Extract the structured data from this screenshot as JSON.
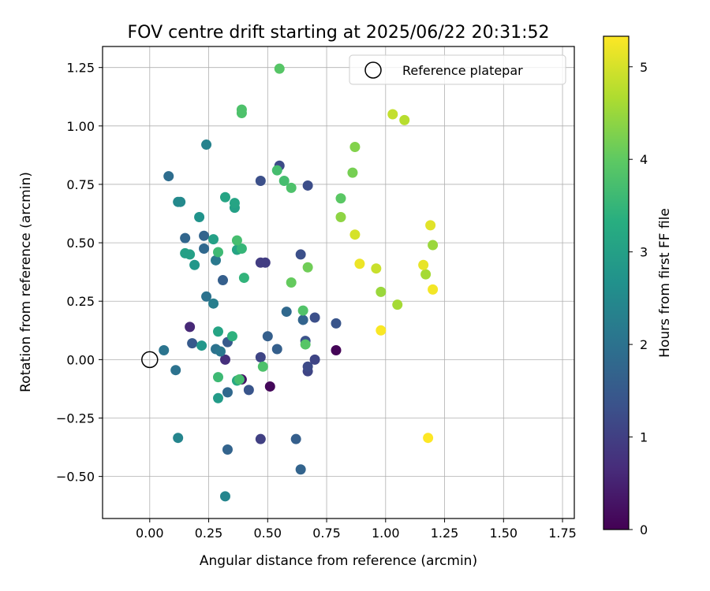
{
  "chart_data": {
    "type": "scatter",
    "title": "FOV centre drift starting at 2025/06/22 20:31:52",
    "xlabel": "Angular distance from reference (arcmin)",
    "ylabel": "Rotation from reference (arcmin)",
    "xlim": [
      -0.2,
      1.8
    ],
    "ylim": [
      -0.68,
      1.34
    ],
    "xticks": [
      0.0,
      0.25,
      0.5,
      0.75,
      1.0,
      1.25,
      1.5,
      1.75
    ],
    "xtick_labels": [
      "0.00",
      "0.25",
      "0.50",
      "0.75",
      "1.00",
      "1.25",
      "1.50",
      "1.75"
    ],
    "yticks": [
      -0.5,
      -0.25,
      0.0,
      0.25,
      0.5,
      0.75,
      1.0,
      1.25
    ],
    "ytick_labels": [
      "−0.50",
      "−0.25",
      "0.00",
      "0.25",
      "0.50",
      "0.75",
      "1.00",
      "1.25"
    ],
    "grid": true,
    "legend": {
      "position": "top-right",
      "entries": [
        "Reference platepar"
      ]
    },
    "reference_point": {
      "label": "Reference platepar",
      "x": 0.0,
      "y": 0.0
    },
    "colorbar": {
      "label": "Hours from first FF file",
      "range": [
        0,
        5.33
      ],
      "ticks": [
        0,
        1,
        2,
        3,
        4,
        5
      ],
      "tick_labels": [
        "0",
        "1",
        "2",
        "3",
        "4",
        "5"
      ],
      "colormap": "viridis"
    },
    "points": [
      {
        "x": 0.79,
        "y": 0.04,
        "h": 0.05
      },
      {
        "x": 0.51,
        "y": -0.115,
        "h": 0.1
      },
      {
        "x": 0.39,
        "y": -0.085,
        "h": 0.3
      },
      {
        "x": 0.17,
        "y": 0.14,
        "h": 0.6
      },
      {
        "x": 0.32,
        "y": 0.0,
        "h": 0.7
      },
      {
        "x": 0.47,
        "y": 0.415,
        "h": 0.95
      },
      {
        "x": 0.49,
        "y": 0.415,
        "h": 0.95
      },
      {
        "x": 0.47,
        "y": -0.34,
        "h": 1.0
      },
      {
        "x": 0.47,
        "y": 0.01,
        "h": 1.1
      },
      {
        "x": 0.7,
        "y": 0.0,
        "h": 1.1
      },
      {
        "x": 0.67,
        "y": -0.05,
        "h": 1.1
      },
      {
        "x": 0.67,
        "y": -0.03,
        "h": 1.2
      },
      {
        "x": 0.55,
        "y": 0.83,
        "h": 1.2
      },
      {
        "x": 0.67,
        "y": 0.745,
        "h": 1.25
      },
      {
        "x": 0.47,
        "y": 0.765,
        "h": 1.3
      },
      {
        "x": 0.7,
        "y": 0.18,
        "h": 1.3
      },
      {
        "x": 0.64,
        "y": 0.45,
        "h": 1.3
      },
      {
        "x": 0.66,
        "y": 0.08,
        "h": 1.35
      },
      {
        "x": 0.79,
        "y": 0.155,
        "h": 1.4
      },
      {
        "x": 0.42,
        "y": -0.13,
        "h": 1.4
      },
      {
        "x": 0.18,
        "y": 0.07,
        "h": 1.5
      },
      {
        "x": 0.33,
        "y": 0.075,
        "h": 1.5
      },
      {
        "x": 0.31,
        "y": 0.34,
        "h": 1.6
      },
      {
        "x": 0.5,
        "y": 0.1,
        "h": 1.6
      },
      {
        "x": 0.54,
        "y": 0.045,
        "h": 1.6
      },
      {
        "x": 0.62,
        "y": -0.34,
        "h": 1.6
      },
      {
        "x": 0.64,
        "y": -0.47,
        "h": 1.7
      },
      {
        "x": 0.65,
        "y": 0.17,
        "h": 1.7
      },
      {
        "x": 0.33,
        "y": -0.385,
        "h": 1.7
      },
      {
        "x": 0.23,
        "y": 0.53,
        "h": 1.7
      },
      {
        "x": 0.15,
        "y": 0.52,
        "h": 1.75
      },
      {
        "x": 0.23,
        "y": 0.475,
        "h": 1.8
      },
      {
        "x": 0.58,
        "y": 0.205,
        "h": 1.8
      },
      {
        "x": 0.33,
        "y": -0.14,
        "h": 1.8
      },
      {
        "x": 0.08,
        "y": 0.785,
        "h": 1.9
      },
      {
        "x": 0.28,
        "y": 0.045,
        "h": 2.0
      },
      {
        "x": 0.24,
        "y": 0.27,
        "h": 2.0
      },
      {
        "x": 0.11,
        "y": -0.045,
        "h": 2.0
      },
      {
        "x": 0.06,
        "y": 0.04,
        "h": 2.05
      },
      {
        "x": 0.3,
        "y": 0.035,
        "h": 2.1
      },
      {
        "x": 0.28,
        "y": 0.425,
        "h": 2.15
      },
      {
        "x": 0.27,
        "y": 0.24,
        "h": 2.25
      },
      {
        "x": 0.24,
        "y": 0.92,
        "h": 2.35
      },
      {
        "x": 0.32,
        "y": -0.585,
        "h": 2.4
      },
      {
        "x": 0.12,
        "y": -0.335,
        "h": 2.4
      },
      {
        "x": 0.12,
        "y": 0.675,
        "h": 2.5
      },
      {
        "x": 0.13,
        "y": 0.675,
        "h": 2.5
      },
      {
        "x": 0.21,
        "y": 0.61,
        "h": 2.7
      },
      {
        "x": 0.19,
        "y": 0.405,
        "h": 2.8
      },
      {
        "x": 0.22,
        "y": 0.06,
        "h": 2.8
      },
      {
        "x": 0.29,
        "y": -0.165,
        "h": 2.9
      },
      {
        "x": 0.27,
        "y": 0.515,
        "h": 3.0
      },
      {
        "x": 0.15,
        "y": 0.455,
        "h": 3.0
      },
      {
        "x": 0.17,
        "y": 0.45,
        "h": 3.0
      },
      {
        "x": 0.36,
        "y": 0.65,
        "h": 3.0
      },
      {
        "x": 0.37,
        "y": 0.47,
        "h": 3.1
      },
      {
        "x": 0.29,
        "y": 0.12,
        "h": 3.1
      },
      {
        "x": 0.32,
        "y": 0.695,
        "h": 3.1
      },
      {
        "x": 0.36,
        "y": 0.67,
        "h": 3.1
      },
      {
        "x": 0.37,
        "y": -0.09,
        "h": 3.2
      },
      {
        "x": 0.35,
        "y": 0.1,
        "h": 3.4
      },
      {
        "x": 0.4,
        "y": 0.35,
        "h": 3.45
      },
      {
        "x": 0.39,
        "y": 0.475,
        "h": 3.5
      },
      {
        "x": 0.29,
        "y": 0.46,
        "h": 3.6
      },
      {
        "x": 0.29,
        "y": -0.075,
        "h": 3.6
      },
      {
        "x": 0.37,
        "y": 0.51,
        "h": 3.7
      },
      {
        "x": 0.38,
        "y": -0.085,
        "h": 3.7
      },
      {
        "x": 0.57,
        "y": 0.765,
        "h": 3.7
      },
      {
        "x": 0.54,
        "y": 0.81,
        "h": 3.7
      },
      {
        "x": 0.48,
        "y": -0.03,
        "h": 3.8
      },
      {
        "x": 0.6,
        "y": 0.735,
        "h": 3.8
      },
      {
        "x": 0.39,
        "y": 1.055,
        "h": 3.8
      },
      {
        "x": 0.39,
        "y": 1.07,
        "h": 3.8
      },
      {
        "x": 0.65,
        "y": 0.21,
        "h": 3.85
      },
      {
        "x": 0.66,
        "y": 0.065,
        "h": 3.9
      },
      {
        "x": 0.55,
        "y": 1.245,
        "h": 3.9
      },
      {
        "x": 0.81,
        "y": 0.69,
        "h": 3.95
      },
      {
        "x": 0.6,
        "y": 0.33,
        "h": 4.05
      },
      {
        "x": 0.67,
        "y": 0.395,
        "h": 4.15
      },
      {
        "x": 0.86,
        "y": 0.8,
        "h": 4.2
      },
      {
        "x": 0.87,
        "y": 0.91,
        "h": 4.3
      },
      {
        "x": 0.81,
        "y": 0.61,
        "h": 4.4
      },
      {
        "x": 0.98,
        "y": 0.29,
        "h": 4.5
      },
      {
        "x": 1.2,
        "y": 0.49,
        "h": 4.5
      },
      {
        "x": 1.05,
        "y": 0.235,
        "h": 4.6
      },
      {
        "x": 1.17,
        "y": 0.365,
        "h": 4.6
      },
      {
        "x": 1.08,
        "y": 1.025,
        "h": 4.75
      },
      {
        "x": 1.03,
        "y": 1.05,
        "h": 4.85
      },
      {
        "x": 0.96,
        "y": 0.39,
        "h": 4.9
      },
      {
        "x": 0.87,
        "y": 0.535,
        "h": 5.0
      },
      {
        "x": 1.19,
        "y": 0.575,
        "h": 5.1
      },
      {
        "x": 1.16,
        "y": 0.405,
        "h": 5.15
      },
      {
        "x": 0.89,
        "y": 0.41,
        "h": 5.2
      },
      {
        "x": 1.2,
        "y": 0.3,
        "h": 5.25
      },
      {
        "x": 0.98,
        "y": 0.125,
        "h": 5.3
      },
      {
        "x": 1.18,
        "y": -0.335,
        "h": 5.33
      }
    ]
  }
}
